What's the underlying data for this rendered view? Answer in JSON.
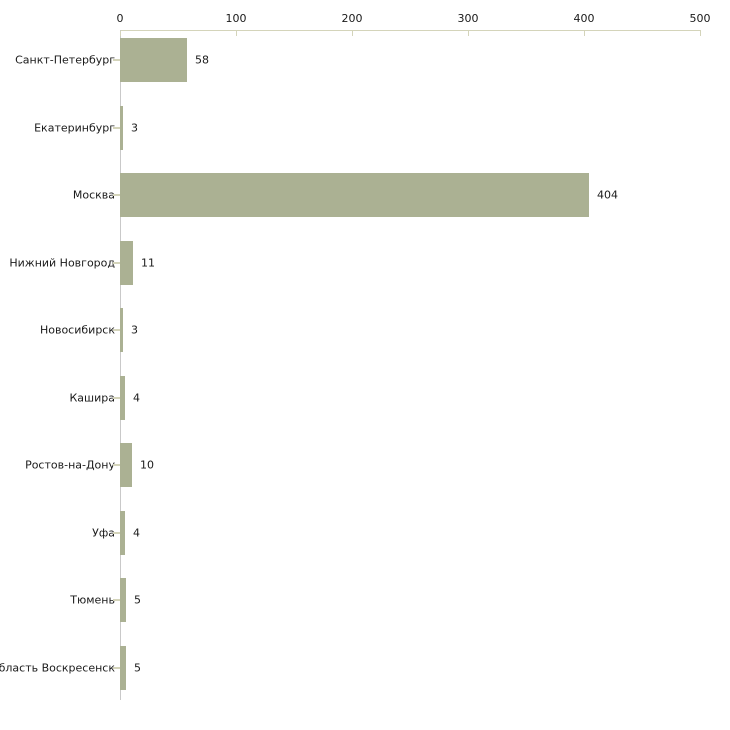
{
  "chart_data": {
    "type": "bar",
    "orientation": "horizontal",
    "title": "",
    "xlabel": "",
    "ylabel": "",
    "categories": [
      "Санкт-Петербург",
      "Екатеринбург",
      "Москва",
      "Нижний Новгород",
      "Новосибирск",
      "Кашира",
      "Ростов-на-Дону",
      "Уфа",
      "Тюмень",
      "область Воскресенск"
    ],
    "values": [
      58,
      3,
      404,
      11,
      3,
      4,
      10,
      4,
      5,
      5
    ],
    "value_labels_shown": true,
    "xticks": [
      0,
      100,
      200,
      300,
      400,
      500
    ],
    "xlim": [
      0,
      500
    ],
    "axis_position": "top",
    "grid": false,
    "legend": null,
    "colors": {
      "bar": "#abb193",
      "x_axis": "#d4d4ba",
      "y_axis": "#c9c9c9",
      "text": "#1a1a1a",
      "background": "#ffffff"
    }
  }
}
